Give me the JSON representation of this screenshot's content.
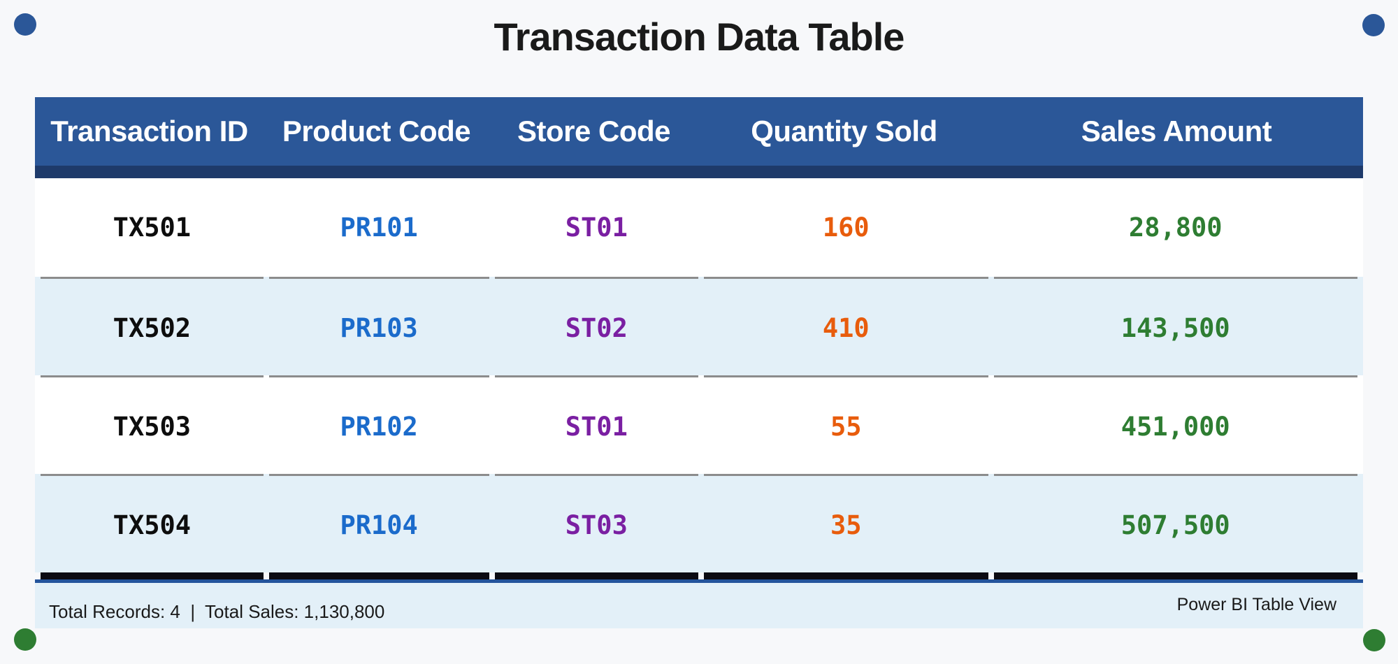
{
  "title": "Transaction Data Table",
  "table": {
    "columns": [
      "Transaction ID",
      "Product Code",
      "Store Code",
      "Quantity Sold",
      "Sales Amount"
    ],
    "rows": [
      [
        "TX501",
        "PR101",
        "ST01",
        "160",
        "28,800"
      ],
      [
        "TX502",
        "PR103",
        "ST02",
        "410",
        "143,500"
      ],
      [
        "TX503",
        "PR102",
        "ST01",
        "55",
        "451,000"
      ],
      [
        "TX504",
        "PR104",
        "ST03",
        "35",
        "507,500"
      ]
    ]
  },
  "footer": {
    "summary": "Total Records: 4  |  Total Sales: 1,130,800",
    "watermark": "Power BI Table View"
  },
  "colors": {
    "page_background": "#F7F8FA",
    "header_background": "#2B5798",
    "header_underline": "#1E3A6A",
    "alt_row_background": "#E3F0F8",
    "row_separator": "#8C8C8C",
    "table_bottom_bar": "#0B0B12",
    "table_bottom_line": "#24549C",
    "transaction_id_text": "#0D0D0D",
    "product_code_text": "#1B6BCB",
    "store_code_text": "#7A1FA2",
    "quantity_text": "#E85C0C",
    "sales_text": "#2E7D32",
    "corner_dot_top": "#2B5798",
    "corner_dot_bottom": "#2E7D32"
  },
  "chart_data": {
    "type": "table",
    "title": "Transaction Data Table",
    "columns": [
      "Transaction ID",
      "Product Code",
      "Store Code",
      "Quantity Sold",
      "Sales Amount"
    ],
    "records": [
      {
        "transaction_id": "TX501",
        "product_code": "PR101",
        "store_code": "ST01",
        "quantity_sold": 160,
        "sales_amount": 28800
      },
      {
        "transaction_id": "TX502",
        "product_code": "PR103",
        "store_code": "ST02",
        "quantity_sold": 410,
        "sales_amount": 143500
      },
      {
        "transaction_id": "TX503",
        "product_code": "PR102",
        "store_code": "ST01",
        "quantity_sold": 55,
        "sales_amount": 451000
      },
      {
        "transaction_id": "TX504",
        "product_code": "PR104",
        "store_code": "ST03",
        "quantity_sold": 35,
        "sales_amount": 507500
      }
    ],
    "totals": {
      "total_records": 4,
      "total_sales": 1130800
    },
    "footer_label": "Power BI Table View"
  }
}
